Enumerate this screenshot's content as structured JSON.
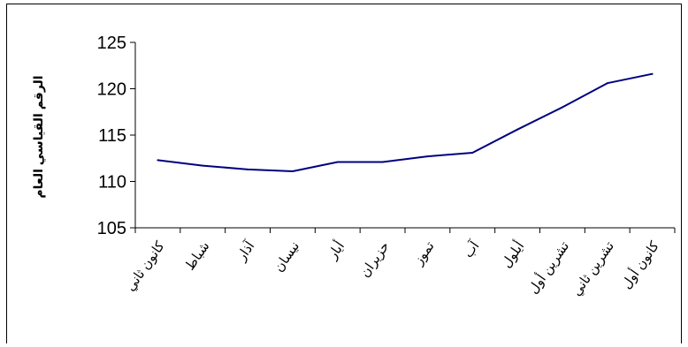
{
  "colors": {
    "line": "#000080",
    "axis": "#000000",
    "text": "#000000",
    "background": "#ffffff"
  },
  "chart_data": {
    "type": "line",
    "title": "",
    "xlabel": "",
    "ylabel": "الرقم القياسي العام",
    "categories": [
      "كانون ثاني",
      "شباط",
      "آذار",
      "نيسان",
      "أيار",
      "حزيران",
      "تموز",
      "آب",
      "أيلول",
      "تشرين أول",
      "تشرين ثاني",
      "كانون أول"
    ],
    "series": [
      {
        "values": [
          112.3,
          111.7,
          111.3,
          111.1,
          112.1,
          112.1,
          112.7,
          113.1,
          115.6,
          118.0,
          120.6,
          121.6
        ]
      }
    ],
    "ylim": [
      105,
      125
    ],
    "yticks": [
      105,
      110,
      115,
      120,
      125
    ],
    "grid": false,
    "legend": "none"
  }
}
